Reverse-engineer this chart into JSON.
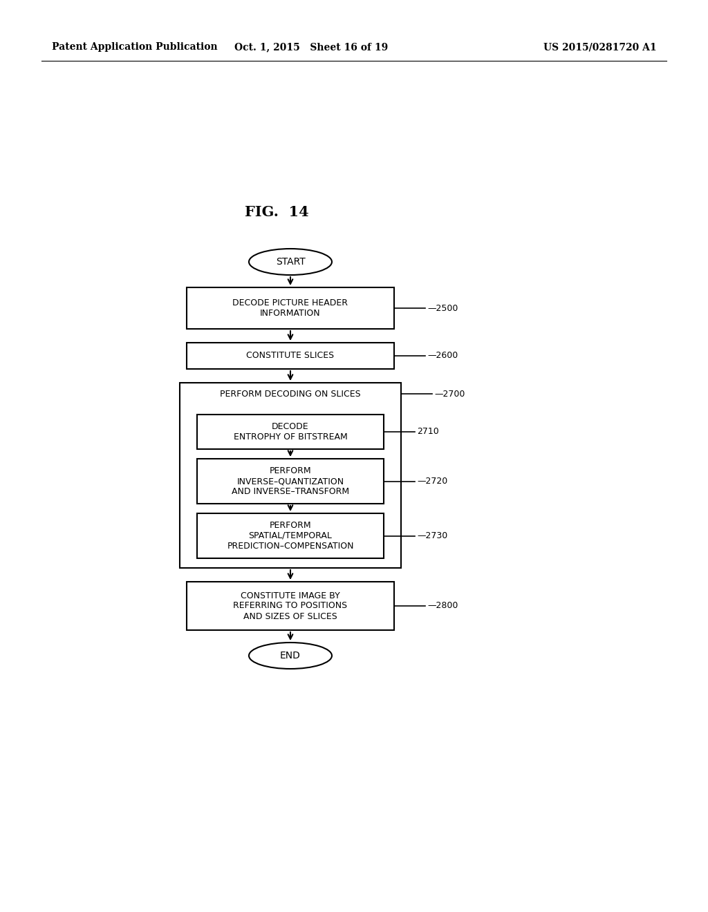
{
  "bg_color": "#ffffff",
  "header_left": "Patent Application Publication",
  "header_center": "Oct. 1, 2015   Sheet 16 of 19",
  "header_right": "US 2015/0281720 A1",
  "fig_label": "FIG.  14",
  "start_text": "START",
  "end_text": "END",
  "box_2500_text": "DECODE PICTURE HEADER\nINFORMATION",
  "box_2500_label": "—2500",
  "box_2600_text": "CONSTITUTE SLICES",
  "box_2600_label": "—2600",
  "box_2700_text": "PERFORM DECODING ON SLICES",
  "box_2700_label": "—2700",
  "box_2710_text": "DECODE\nENTROPHY OF BITSTREAM",
  "box_2710_label": "2710",
  "box_2720_text": "PERFORM\nINVERSE–QUANTIZATION\nAND INVERSE–TRANSFORM",
  "box_2720_label": "—2720",
  "box_2730_text": "PERFORM\nSPATIAL/TEMPORAL\nPREDICTION–COMPENSATION",
  "box_2730_label": "—2730",
  "box_2800_text": "CONSTITUTE IMAGE BY\nREFERRING TO POSITIONS\nAND SIZES OF SLICES",
  "box_2800_label": "—2800"
}
